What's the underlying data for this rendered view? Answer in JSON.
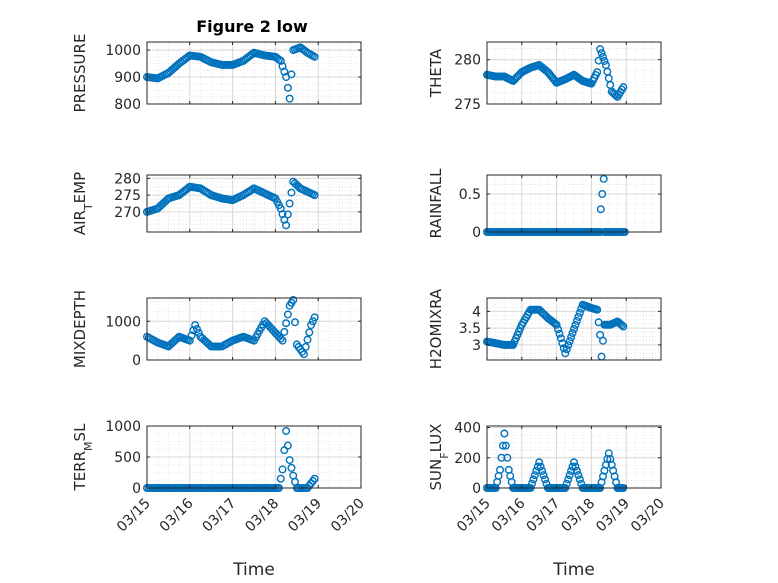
{
  "figure": {
    "title": "Figure 2 low"
  },
  "chart_data": [
    {
      "type": "scatter",
      "panel": "pressure",
      "title": "Figure 2 low",
      "xlabel": "",
      "ylabel": "PRESSURE",
      "xlim": [
        "2016-03-15",
        "2016-03-20"
      ],
      "ylim": [
        800,
        1030
      ],
      "yticks": [
        800,
        900,
        1000
      ],
      "ytick_labels": [
        "800",
        "900",
        "1000"
      ],
      "grid": true,
      "marker": "o",
      "color": "#0072BD",
      "keypoints": [
        [
          "03-15 00:00",
          900
        ],
        [
          "03-15 06:00",
          895
        ],
        [
          "03-15 12:00",
          915
        ],
        [
          "03-15 18:00",
          950
        ],
        [
          "03-16 00:00",
          980
        ],
        [
          "03-16 06:00",
          975
        ],
        [
          "03-16 12:00",
          955
        ],
        [
          "03-16 18:00",
          945
        ],
        [
          "03-17 00:00",
          945
        ],
        [
          "03-17 06:00",
          960
        ],
        [
          "03-17 12:00",
          990
        ],
        [
          "03-17 18:00",
          980
        ],
        [
          "03-18 00:00",
          975
        ],
        [
          "03-18 03:00",
          960
        ],
        [
          "03-18 06:00",
          900
        ],
        [
          "03-18 08:00",
          820
        ],
        [
          "03-18 10:00",
          1000
        ],
        [
          "03-18 14:00",
          1010
        ],
        [
          "03-18 18:00",
          990
        ],
        [
          "03-18 22:00",
          975
        ]
      ]
    },
    {
      "type": "scatter",
      "panel": "theta",
      "xlabel": "",
      "ylabel": "THETA",
      "xlim": [
        "2016-03-15",
        "2016-03-20"
      ],
      "ylim": [
        275,
        282
      ],
      "yticks": [
        275,
        280
      ],
      "ytick_labels": [
        "275",
        "280"
      ],
      "grid": true,
      "marker": "o",
      "color": "#0072BD",
      "keypoints": [
        [
          "03-15 00:00",
          278.3
        ],
        [
          "03-15 06:00",
          278.1
        ],
        [
          "03-15 12:00",
          278.1
        ],
        [
          "03-15 18:00",
          277.6
        ],
        [
          "03-16 00:00",
          278.6
        ],
        [
          "03-16 06:00",
          279.1
        ],
        [
          "03-16 12:00",
          279.4
        ],
        [
          "03-16 18:00",
          278.6
        ],
        [
          "03-17 00:00",
          277.4
        ],
        [
          "03-17 06:00",
          277.8
        ],
        [
          "03-17 12:00",
          278.3
        ],
        [
          "03-17 18:00",
          277.6
        ],
        [
          "03-18 00:00",
          277.3
        ],
        [
          "03-18 04:00",
          278.6
        ],
        [
          "03-18 06:00",
          281.2
        ],
        [
          "03-18 10:00",
          279.4
        ],
        [
          "03-18 14:00",
          276.4
        ],
        [
          "03-18 18:00",
          275.8
        ],
        [
          "03-18 22:00",
          276.9
        ]
      ]
    },
    {
      "type": "scatter",
      "panel": "air_temp",
      "xlabel": "",
      "ylabel": "AIR_TEMP",
      "xlim": [
        "2016-03-15",
        "2016-03-20"
      ],
      "ylim": [
        264,
        281
      ],
      "yticks": [
        270,
        275,
        280
      ],
      "ytick_labels": [
        "270",
        "275",
        "280"
      ],
      "grid": true,
      "marker": "o",
      "color": "#0072BD",
      "keypoints": [
        [
          "03-15 00:00",
          270
        ],
        [
          "03-15 06:00",
          271
        ],
        [
          "03-15 12:00",
          274
        ],
        [
          "03-15 18:00",
          275
        ],
        [
          "03-16 00:00",
          277.5
        ],
        [
          "03-16 06:00",
          277
        ],
        [
          "03-16 12:00",
          275
        ],
        [
          "03-16 18:00",
          274
        ],
        [
          "03-17 00:00",
          273.5
        ],
        [
          "03-17 06:00",
          275
        ],
        [
          "03-17 12:00",
          277
        ],
        [
          "03-17 18:00",
          275.5
        ],
        [
          "03-18 00:00",
          274
        ],
        [
          "03-18 03:00",
          271
        ],
        [
          "03-18 06:00",
          266
        ],
        [
          "03-18 10:00",
          279
        ],
        [
          "03-18 14:00",
          277
        ],
        [
          "03-18 18:00",
          276
        ],
        [
          "03-18 22:00",
          275
        ]
      ]
    },
    {
      "type": "scatter",
      "panel": "rainfall",
      "xlabel": "",
      "ylabel": "RAINFALL",
      "xlim": [
        "2016-03-15",
        "2016-03-20"
      ],
      "ylim": [
        0,
        0.75
      ],
      "yticks": [
        0,
        0.5
      ],
      "ytick_labels": [
        "0",
        "0.5"
      ],
      "grid": true,
      "marker": "o",
      "color": "#0072BD",
      "keypoints": [
        [
          "03-15 00:00",
          0
        ],
        [
          "03-18 06:00",
          0
        ],
        [
          "03-18 06:30",
          0.3
        ],
        [
          "03-18 08:30",
          0.7
        ],
        [
          "03-18 09:00",
          0
        ],
        [
          "03-18 23:00",
          0
        ]
      ]
    },
    {
      "type": "scatter",
      "panel": "mixdepth",
      "xlabel": "",
      "ylabel": "MIXDEPTH",
      "xlim": [
        "2016-03-15",
        "2016-03-20"
      ],
      "ylim": [
        0,
        1600
      ],
      "yticks": [
        0,
        1000
      ],
      "ytick_labels": [
        "0",
        "1000"
      ],
      "grid": true,
      "marker": "o",
      "color": "#0072BD",
      "keypoints": [
        [
          "03-15 00:00",
          600
        ],
        [
          "03-15 06:00",
          450
        ],
        [
          "03-15 12:00",
          350
        ],
        [
          "03-15 18:00",
          600
        ],
        [
          "03-16 00:00",
          500
        ],
        [
          "03-16 03:00",
          900
        ],
        [
          "03-16 06:00",
          600
        ],
        [
          "03-16 12:00",
          350
        ],
        [
          "03-16 18:00",
          350
        ],
        [
          "03-17 00:00",
          500
        ],
        [
          "03-17 06:00",
          600
        ],
        [
          "03-17 12:00",
          500
        ],
        [
          "03-17 18:00",
          1000
        ],
        [
          "03-18 00:00",
          700
        ],
        [
          "03-18 04:00",
          500
        ],
        [
          "03-18 08:00",
          1400
        ],
        [
          "03-18 10:00",
          1550
        ],
        [
          "03-18 12:00",
          400
        ],
        [
          "03-18 16:00",
          150
        ],
        [
          "03-18 20:00",
          900
        ],
        [
          "03-18 22:00",
          1100
        ]
      ]
    },
    {
      "type": "scatter",
      "panel": "h2omixra",
      "xlabel": "",
      "ylabel": "H2OMIXRA",
      "xlim": [
        "2016-03-15",
        "2016-03-20"
      ],
      "ylim": [
        2.55,
        4.4
      ],
      "yticks": [
        3,
        3.5,
        4
      ],
      "ytick_labels": [
        "3",
        "3.5",
        "4"
      ],
      "grid": true,
      "marker": "o",
      "color": "#0072BD",
      "keypoints": [
        [
          "03-15 00:00",
          3.1
        ],
        [
          "03-15 12:00",
          3
        ],
        [
          "03-15 18:00",
          3
        ],
        [
          "03-16 00:00",
          3.6
        ],
        [
          "03-16 06:00",
          4.05
        ],
        [
          "03-16 12:00",
          4.05
        ],
        [
          "03-16 18:00",
          3.8
        ],
        [
          "03-17 00:00",
          3.6
        ],
        [
          "03-17 03:00",
          3.2
        ],
        [
          "03-17 06:00",
          2.75
        ],
        [
          "03-17 18:00",
          4.2
        ],
        [
          "03-18 00:00",
          4.1
        ],
        [
          "03-18 04:00",
          4.05
        ],
        [
          "03-18 06:00",
          3.3
        ],
        [
          "03-18 07:00",
          2.65
        ],
        [
          "03-18 09:00",
          3.6
        ],
        [
          "03-18 13:00",
          3.6
        ],
        [
          "03-18 18:00",
          3.7
        ],
        [
          "03-18 22:00",
          3.55
        ]
      ]
    },
    {
      "type": "scatter",
      "panel": "terr_msl",
      "xlabel": "Time",
      "ylabel": "TERR_MSL",
      "xlim": [
        "2016-03-15",
        "2016-03-20"
      ],
      "ylim": [
        0,
        1000
      ],
      "yticks": [
        0,
        500,
        1000
      ],
      "ytick_labels": [
        "0",
        "500",
        "1000"
      ],
      "xtick_labels": [
        "03/15",
        "03/16",
        "03/17",
        "03/18",
        "03/19",
        "03/20"
      ],
      "grid": true,
      "marker": "o",
      "color": "#0072BD",
      "keypoints": [
        [
          "03-15 00:00",
          0
        ],
        [
          "03-18 02:00",
          0
        ],
        [
          "03-18 04:00",
          300
        ],
        [
          "03-18 06:00",
          920
        ],
        [
          "03-18 08:00",
          450
        ],
        [
          "03-18 10:00",
          200
        ],
        [
          "03-18 12:00",
          0
        ],
        [
          "03-18 18:00",
          0
        ],
        [
          "03-18 22:00",
          150
        ]
      ]
    },
    {
      "type": "scatter",
      "panel": "sun_flux",
      "xlabel": "Time",
      "ylabel": "SUN_FLUX",
      "xlim": [
        "2016-03-15",
        "2016-03-20"
      ],
      "ylim": [
        0,
        410
      ],
      "yticks": [
        0,
        200,
        400
      ],
      "ytick_labels": [
        "0",
        "200",
        "400"
      ],
      "xtick_labels": [
        "03/15",
        "03/16",
        "03/17",
        "03/18",
        "03/19",
        "03/20"
      ],
      "grid": true,
      "marker": "o",
      "color": "#0072BD",
      "keypoints": [
        [
          "03-15 00:00",
          0
        ],
        [
          "03-15 06:00",
          0
        ],
        [
          "03-15 09:00",
          120
        ],
        [
          "03-15 12:00",
          360
        ],
        [
          "03-15 15:00",
          120
        ],
        [
          "03-15 18:00",
          0
        ],
        [
          "03-16 06:00",
          0
        ],
        [
          "03-16 12:00",
          170
        ],
        [
          "03-16 18:00",
          0
        ],
        [
          "03-17 06:00",
          0
        ],
        [
          "03-17 12:00",
          170
        ],
        [
          "03-17 18:00",
          0
        ],
        [
          "03-18 06:00",
          0
        ],
        [
          "03-18 12:00",
          230
        ],
        [
          "03-18 18:00",
          0
        ],
        [
          "03-18 22:00",
          0
        ]
      ]
    }
  ]
}
